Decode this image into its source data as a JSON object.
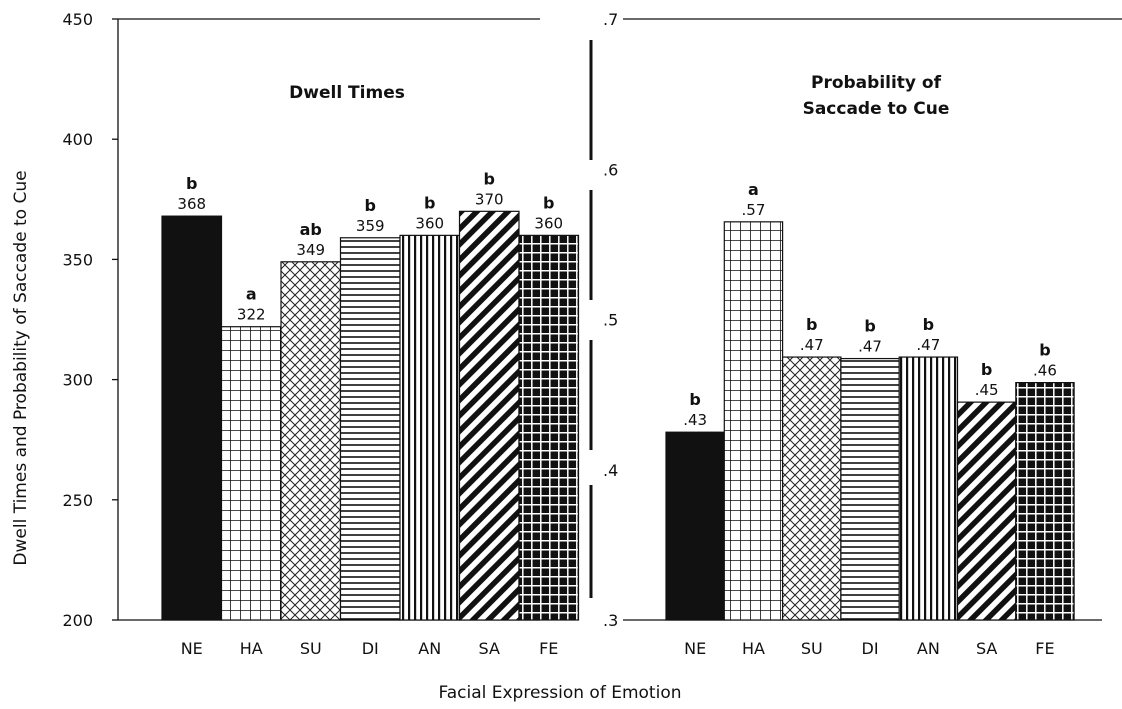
{
  "chart_data": {
    "type": "bar",
    "xlabel": "Facial Expression of Emotion",
    "ylabel": "Dwell Times and Probability of Saccade to Cue",
    "panels": [
      {
        "title": "Dwell Times",
        "categories": [
          "NE",
          "HA",
          "SU",
          "DI",
          "AN",
          "SA",
          "FE"
        ],
        "values": [
          368,
          322,
          349,
          359,
          360,
          370,
          360
        ],
        "value_labels": [
          "368",
          "322",
          "349",
          "359",
          "360",
          "370",
          "360"
        ],
        "group_labels": [
          "b",
          "a",
          "ab",
          "b",
          "b",
          "b",
          "b"
        ],
        "patterns": [
          "solid",
          "grid",
          "crosshatch",
          "horizontal",
          "vertical",
          "diagonal",
          "checker"
        ],
        "ylim": [
          200,
          450
        ],
        "yticks": [
          200,
          250,
          300,
          350,
          400,
          450
        ],
        "ytick_labels": [
          "200",
          "250",
          "300",
          "350",
          "400",
          "450"
        ]
      },
      {
        "title": "Probability of Saccade to Cue",
        "categories": [
          "NE",
          "HA",
          "SU",
          "DI",
          "AN",
          "SA",
          "FE"
        ],
        "values": [
          0.425,
          0.565,
          0.475,
          0.474,
          0.475,
          0.445,
          0.458
        ],
        "value_labels": [
          ".43",
          ".57",
          ".47",
          ".47",
          ".47",
          ".45",
          ".46"
        ],
        "group_labels": [
          "b",
          "a",
          "b",
          "b",
          "b",
          "b",
          "b"
        ],
        "patterns": [
          "solid",
          "grid",
          "crosshatch",
          "horizontal",
          "vertical",
          "diagonal",
          "checker"
        ],
        "ylim": [
          0.3,
          0.7
        ],
        "yticks": [
          0.3,
          0.4,
          0.5,
          0.6,
          0.7
        ],
        "ytick_labels": [
          ".3",
          ".4",
          ".5",
          ".6",
          ".7"
        ]
      }
    ],
    "grid": false,
    "legend": "none"
  }
}
